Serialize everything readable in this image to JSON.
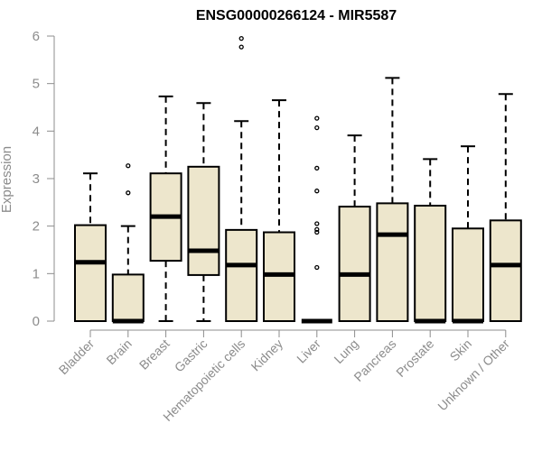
{
  "chart_data": {
    "type": "boxplot",
    "title": "ENSG00000266124 - MIR5587",
    "ylabel": "Expression",
    "xlabel": "",
    "ylim": [
      0,
      6
    ],
    "yticks": [
      0,
      1,
      2,
      3,
      4,
      5,
      6
    ],
    "grid": false,
    "box_color": "#ede6cc",
    "categories": [
      "Bladder",
      "Brain",
      "Breast",
      "Gastric",
      "Hematopoietic cells",
      "Kidney",
      "Liver",
      "Lung",
      "Pancreas",
      "Prostate",
      "Skin",
      "Unknown / Other"
    ],
    "boxes": [
      {
        "min": 0,
        "q1": 0,
        "median": 1.24,
        "q3": 2.02,
        "max": 3.11,
        "outliers": []
      },
      {
        "min": 0,
        "q1": 0,
        "median": 0.0,
        "q3": 0.98,
        "max": 2.0,
        "outliers": [
          2.7,
          3.27
        ]
      },
      {
        "min": 0,
        "q1": 1.27,
        "median": 2.2,
        "q3": 3.11,
        "max": 4.73,
        "outliers": []
      },
      {
        "min": 0,
        "q1": 0.97,
        "median": 1.48,
        "q3": 3.25,
        "max": 4.59,
        "outliers": []
      },
      {
        "min": 0,
        "q1": 0,
        "median": 1.18,
        "q3": 1.92,
        "max": 4.21,
        "outliers": [
          5.77,
          5.95
        ]
      },
      {
        "min": 0,
        "q1": 0,
        "median": 0.98,
        "q3": 1.87,
        "max": 4.65,
        "outliers": []
      },
      {
        "min": 0,
        "q1": 0,
        "median": 0.0,
        "q3": 0.0,
        "max": 0.0,
        "outliers": [
          1.13,
          1.87,
          1.93,
          2.05,
          2.74,
          3.22,
          4.07,
          4.27
        ]
      },
      {
        "min": 0,
        "q1": 0,
        "median": 0.98,
        "q3": 2.41,
        "max": 3.91,
        "outliers": []
      },
      {
        "min": 0,
        "q1": 0,
        "median": 1.82,
        "q3": 2.48,
        "max": 5.12,
        "outliers": []
      },
      {
        "min": 0,
        "q1": 0,
        "median": 0.0,
        "q3": 2.43,
        "max": 3.41,
        "outliers": []
      },
      {
        "min": 0,
        "q1": 0,
        "median": 0.0,
        "q3": 1.95,
        "max": 3.68,
        "outliers": []
      },
      {
        "min": 0,
        "q1": 0,
        "median": 1.18,
        "q3": 2.12,
        "max": 4.78,
        "outliers": []
      }
    ]
  }
}
